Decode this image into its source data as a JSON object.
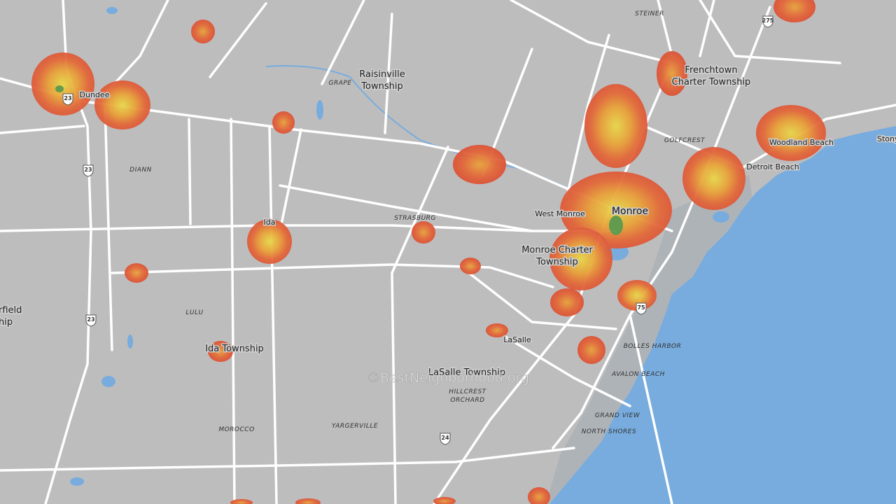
{
  "map": {
    "places": [
      [
        "Raisinville",
        "Township"
      ],
      [
        "Frenchtown",
        "Charter Township"
      ],
      [
        "Dundee"
      ],
      [
        "Woodland Beach"
      ],
      [
        "Detroit Beach"
      ],
      [
        "Stony"
      ],
      [
        "West Monroe"
      ],
      [
        "Monroe"
      ],
      [
        "Ida"
      ],
      [
        "Monroe Charter",
        "Township"
      ],
      [
        "rfield",
        "hip"
      ],
      [
        "LaSalle"
      ],
      [
        "Ida Township"
      ],
      [
        "LaSalle Township"
      ]
    ],
    "localities": [
      [
        "GRAPE"
      ],
      [
        "STEINER"
      ],
      [
        "DIANN"
      ],
      [
        "GOLFCREST"
      ],
      [
        "STRASBURG"
      ],
      [
        "LULU"
      ],
      [
        "BOLLES HARBOR"
      ],
      [
        "AVALON BEACH"
      ],
      [
        "HILLCREST",
        "ORCHARD"
      ],
      [
        "GRAND VIEW"
      ],
      [
        "NORTH SHORES"
      ],
      [
        "MOROCCO"
      ],
      [
        "YARGERVILLE"
      ]
    ],
    "shields": [
      "23",
      "23",
      "23",
      "275",
      "75",
      "24"
    ],
    "watermark": "©BestNeighborhood.org"
  }
}
